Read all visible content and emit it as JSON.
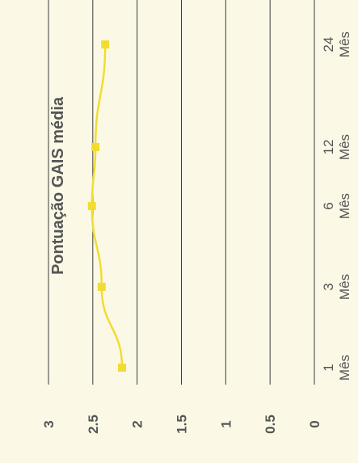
{
  "chart_data": {
    "type": "line",
    "title": "Pontuação GAIS média",
    "categories": [
      "1 Mês",
      "3 Mês",
      "6 Mês",
      "12 Mês",
      "24 Mês"
    ],
    "category_lines": [
      [
        "1",
        "Mês"
      ],
      [
        "3",
        "Mês"
      ],
      [
        "6",
        "Mês"
      ],
      [
        "12",
        "Mês"
      ],
      [
        "24",
        "Mês"
      ]
    ],
    "series": [
      {
        "values": [
          2.17,
          2.4,
          2.51,
          2.47,
          2.36
        ]
      }
    ],
    "ylim": [
      0,
      3
    ],
    "yticks": [
      "0",
      "0.5",
      "1",
      "1.5",
      "2",
      "2.5",
      "3"
    ],
    "grid": true,
    "orientation": "rotated-90-ccw",
    "colors": {
      "background": "#fbf9e6",
      "line": "#f2dc32",
      "grid": "#3a3a3a",
      "text": "#555555"
    }
  }
}
